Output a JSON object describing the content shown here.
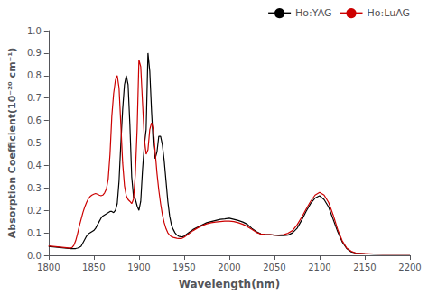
{
  "chart_data": {
    "type": "line",
    "xlabel": "Wavelength(nm)",
    "ylabel": "Absorption Coefficient(10⁻²⁰ cm⁻¹)",
    "xlim": [
      1800,
      2200
    ],
    "ylim": [
      0.0,
      1.0
    ],
    "xticks": [
      1800,
      1850,
      1900,
      1950,
      2000,
      2050,
      2100,
      2150,
      2200
    ],
    "yticks": [
      {
        "value": 0.0,
        "label": "0.0"
      },
      0.1,
      0.2,
      0.3,
      0.4,
      0.5,
      0.6,
      0.7,
      0.8,
      0.9,
      {
        "value": 1.0,
        "label": "1.0"
      }
    ],
    "grid": false,
    "legend": "upper right",
    "series": [
      {
        "name": "Ho:YAG",
        "color": "#000000",
        "x": [
          1800,
          1805,
          1810,
          1815,
          1820,
          1825,
          1828,
          1830,
          1832,
          1834,
          1836,
          1838,
          1840,
          1842,
          1844,
          1846,
          1848,
          1850,
          1852,
          1854,
          1856,
          1858,
          1860,
          1862,
          1864,
          1866,
          1868,
          1870,
          1872,
          1874,
          1876,
          1878,
          1880,
          1882,
          1884,
          1886,
          1888,
          1890,
          1892,
          1894,
          1896,
          1898,
          1900,
          1902,
          1904,
          1906,
          1908,
          1910,
          1912,
          1914,
          1916,
          1918,
          1920,
          1922,
          1924,
          1926,
          1928,
          1930,
          1932,
          1934,
          1936,
          1938,
          1940,
          1942,
          1944,
          1946,
          1948,
          1950,
          1955,
          1960,
          1965,
          1970,
          1975,
          1980,
          1985,
          1990,
          1995,
          2000,
          2005,
          2010,
          2015,
          2020,
          2025,
          2030,
          2035,
          2040,
          2045,
          2050,
          2055,
          2060,
          2065,
          2070,
          2075,
          2080,
          2085,
          2090,
          2095,
          2100,
          2105,
          2110,
          2115,
          2120,
          2125,
          2130,
          2135,
          2140,
          2150,
          2160,
          2170,
          2180,
          2190,
          2200
        ],
        "values": [
          0.04,
          0.038,
          0.036,
          0.034,
          0.032,
          0.03,
          0.03,
          0.03,
          0.032,
          0.035,
          0.04,
          0.055,
          0.07,
          0.085,
          0.095,
          0.1,
          0.105,
          0.11,
          0.12,
          0.135,
          0.15,
          0.165,
          0.175,
          0.18,
          0.185,
          0.19,
          0.195,
          0.195,
          0.19,
          0.2,
          0.23,
          0.33,
          0.5,
          0.65,
          0.76,
          0.8,
          0.76,
          0.58,
          0.35,
          0.26,
          0.25,
          0.22,
          0.2,
          0.24,
          0.38,
          0.49,
          0.56,
          0.9,
          0.82,
          0.64,
          0.49,
          0.43,
          0.46,
          0.53,
          0.53,
          0.49,
          0.42,
          0.33,
          0.24,
          0.175,
          0.135,
          0.115,
          0.1,
          0.09,
          0.085,
          0.083,
          0.082,
          0.085,
          0.1,
          0.115,
          0.125,
          0.135,
          0.145,
          0.15,
          0.155,
          0.16,
          0.162,
          0.165,
          0.16,
          0.155,
          0.148,
          0.138,
          0.12,
          0.105,
          0.095,
          0.093,
          0.092,
          0.09,
          0.088,
          0.088,
          0.09,
          0.1,
          0.12,
          0.155,
          0.195,
          0.23,
          0.255,
          0.265,
          0.248,
          0.215,
          0.16,
          0.105,
          0.06,
          0.03,
          0.015,
          0.01,
          0.007,
          0.005,
          0.005,
          0.005,
          0.005,
          0.005
        ]
      },
      {
        "name": "Ho:LuAG",
        "color": "#cc0000",
        "x": [
          1800,
          1805,
          1810,
          1815,
          1820,
          1824,
          1826,
          1828,
          1830,
          1832,
          1834,
          1836,
          1838,
          1840,
          1842,
          1844,
          1846,
          1848,
          1850,
          1852,
          1854,
          1856,
          1858,
          1860,
          1862,
          1864,
          1866,
          1868,
          1870,
          1872,
          1874,
          1876,
          1878,
          1880,
          1882,
          1884,
          1886,
          1888,
          1890,
          1892,
          1894,
          1896,
          1898,
          1900,
          1902,
          1904,
          1906,
          1908,
          1910,
          1912,
          1914,
          1916,
          1918,
          1920,
          1922,
          1924,
          1926,
          1928,
          1930,
          1932,
          1934,
          1936,
          1938,
          1940,
          1942,
          1944,
          1946,
          1948,
          1950,
          1955,
          1960,
          1965,
          1970,
          1975,
          1980,
          1985,
          1990,
          1995,
          2000,
          2005,
          2010,
          2015,
          2020,
          2025,
          2030,
          2035,
          2040,
          2045,
          2050,
          2055,
          2060,
          2065,
          2070,
          2075,
          2080,
          2085,
          2090,
          2095,
          2100,
          2105,
          2110,
          2115,
          2120,
          2125,
          2130,
          2135,
          2140,
          2150,
          2160,
          2170,
          2180,
          2190,
          2200
        ],
        "values": [
          0.042,
          0.04,
          0.038,
          0.036,
          0.034,
          0.032,
          0.035,
          0.045,
          0.065,
          0.095,
          0.13,
          0.16,
          0.19,
          0.215,
          0.235,
          0.252,
          0.262,
          0.268,
          0.272,
          0.275,
          0.272,
          0.268,
          0.265,
          0.268,
          0.278,
          0.295,
          0.34,
          0.45,
          0.62,
          0.72,
          0.78,
          0.8,
          0.745,
          0.58,
          0.41,
          0.31,
          0.265,
          0.248,
          0.24,
          0.23,
          0.25,
          0.36,
          0.56,
          0.87,
          0.84,
          0.68,
          0.52,
          0.45,
          0.47,
          0.56,
          0.59,
          0.56,
          0.46,
          0.365,
          0.29,
          0.23,
          0.18,
          0.145,
          0.118,
          0.1,
          0.09,
          0.083,
          0.08,
          0.078,
          0.076,
          0.075,
          0.075,
          0.076,
          0.08,
          0.095,
          0.11,
          0.122,
          0.132,
          0.14,
          0.145,
          0.148,
          0.15,
          0.152,
          0.152,
          0.15,
          0.145,
          0.138,
          0.128,
          0.115,
          0.102,
          0.095,
          0.093,
          0.092,
          0.09,
          0.09,
          0.092,
          0.098,
          0.11,
          0.135,
          0.168,
          0.205,
          0.24,
          0.268,
          0.28,
          0.268,
          0.235,
          0.18,
          0.115,
          0.065,
          0.032,
          0.018,
          0.01,
          0.008,
          0.006,
          0.005,
          0.005,
          0.005,
          0.005
        ]
      }
    ]
  }
}
